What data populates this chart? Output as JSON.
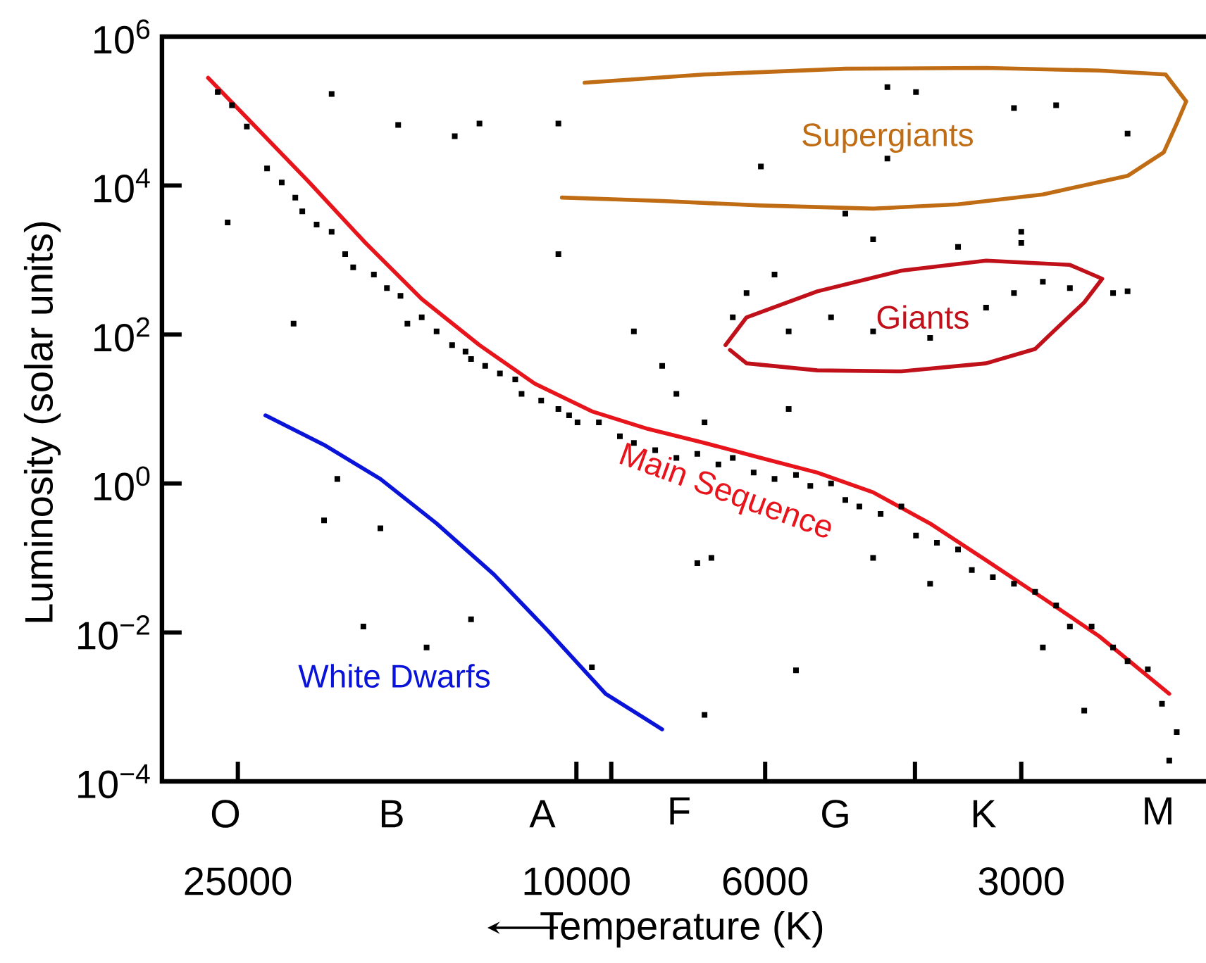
{
  "chart_data": {
    "type": "line",
    "xlabel": "Temperature (K)",
    "ylabel": "Luminosity (solar units)",
    "log": "xy",
    "xlim": [
      30700,
      1820
    ],
    "ylim": [
      0.0001,
      1000000
    ],
    "xticks": [
      25000,
      10000,
      {
        "value": 9100,
        "label": null
      },
      6000,
      {
        "value": 4000,
        "label": null
      },
      3000
    ],
    "annotations": [
      "O",
      "B",
      "A",
      "F",
      "G",
      "K",
      "M"
    ],
    "yticks": [
      {
        "value": 0.0001,
        "label": "10$^{−4}$"
      },
      {
        "value": 0.01,
        "label": "10$^{−2}$"
      },
      {
        "value": 1,
        "label": "10$^{0}$"
      },
      {
        "value": 100,
        "label": "10$^{2}$"
      },
      {
        "value": 10000,
        "label": "10$^{4}$"
      },
      {
        "value": 1000000,
        "label": "10$^{6}$"
      }
    ],
    "series": [
      {
        "type": "scatter",
        "color": "#000000",
        "marker": "square",
        "x": [
          26400,
          25400,
          24400,
          23100,
          22200,
          21400,
          21000,
          20200,
          19400,
          18700,
          18300,
          17300,
          16700,
          16100,
          15800,
          15200,
          14600,
          14000,
          13500,
          13300,
          12800,
          12300,
          11800,
          11600,
          11000,
          10500,
          10200,
          9970,
          9410,
          8890,
          8560,
          8080,
          7630,
          7210,
          6810,
          6550,
          6190,
          5850,
          5520,
          5310,
          5020,
          4830,
          4650,
          4390,
          4150,
          3990,
          3770,
          3560,
          3430,
          3240,
          3060,
          2890,
          2730,
          2630,
          2480,
          2340,
          2250,
          2130,
          2050,
          1970,
          2010,
          4480,
          3840,
          2830,
          2530,
          19400,
          16200,
          13900,
          13000,
          10500,
          25700,
          21500,
          10500,
          17000,
          19800,
          13300,
          15000,
          17800,
          9590,
          7070,
          5520,
          7210,
          6940,
          19100,
          4310,
          3990,
          3060,
          2730,
          2250,
          4310,
          6070,
          4830,
          4480,
          3560,
          3000,
          3000,
          5850,
          6310,
          6550,
          5630,
          5020,
          4480,
          3840,
          3300,
          3060,
          2830,
          2630,
          2340,
          2250,
          8560,
          7930,
          7630,
          7070,
          5630
        ],
        "values": [
          180000,
          120000,
          62000,
          17000,
          11000,
          6900,
          4500,
          3000,
          2400,
          1200,
          800,
          640,
          420,
          330,
          140,
          170,
          110,
          72,
          59,
          47,
          38,
          30,
          25,
          16,
          13,
          10,
          8.2,
          6.6,
          6.6,
          4.3,
          3.5,
          2.8,
          2.2,
          2.5,
          1.8,
          2.2,
          1.4,
          1.15,
          1.3,
          0.93,
          1.0,
          0.6,
          0.49,
          0.39,
          0.49,
          0.2,
          0.16,
          0.13,
          0.069,
          0.055,
          0.045,
          0.035,
          0.023,
          0.012,
          0.012,
          0.0063,
          0.0041,
          0.0032,
          0.0011,
          0.00046,
          0.00019,
          0.1,
          0.045,
          0.0063,
          0.00089,
          170000,
          65000,
          46000,
          68000,
          68000,
          3200,
          140,
          1200,
          0.25,
          0.32,
          0.015,
          0.0063,
          0.012,
          0.0034,
          0.00078,
          0.0031,
          0.085,
          0.1,
          1.15,
          210000,
          180000,
          110000,
          120000,
          50000,
          23000,
          18000,
          4200,
          1900,
          1500,
          2400,
          1700,
          640,
          360,
          170,
          110,
          170,
          110,
          90,
          230,
          360,
          510,
          420,
          360,
          380,
          110,
          38,
          16,
          6.6,
          10
        ]
      },
      {
        "type": "line",
        "name": "Main Sequence",
        "color": "#e8141c",
        "x": [
          27100,
          24000,
          20600,
          17700,
          15200,
          13000,
          11200,
          9590,
          8240,
          7070,
          6070,
          5210,
          4480,
          3840,
          3300,
          2830,
          2430,
          2010
        ],
        "values": [
          280000,
          67000,
          11000,
          1700,
          300,
          72,
          22,
          9.3,
          5.4,
          3.5,
          2.2,
          1.4,
          0.76,
          0.29,
          0.093,
          0.029,
          0.0089,
          0.0015
        ]
      },
      {
        "type": "line",
        "name": "White Dwarfs",
        "color": "#0a14d8",
        "x": [
          23200,
          19800,
          17000,
          14600,
          12500,
          10800,
          9240,
          7930
        ],
        "values": [
          8.2,
          3.3,
          1.15,
          0.29,
          0.06,
          0.0105,
          0.0015,
          0.0005
        ]
      },
      {
        "type": "line",
        "name": "Giants",
        "color": "#c0101a",
        "x": [
          6680,
          6310,
          5210,
          4150,
          3300,
          2630,
          2410,
          2530,
          2750,
          2890,
          3300,
          4150,
          5210,
          6310,
          6600
        ],
        "values": [
          72,
          170,
          380,
          720,
          980,
          860,
          560,
          270,
          110,
          64,
          41,
          32,
          33,
          41,
          62
        ]
      },
      {
        "type": "line",
        "name": "Supergiants",
        "color": "#c06c14",
        "x": [
          9780,
          7070,
          4830,
          3300,
          2430,
          2030,
          1920,
          1970,
          2040,
          2250,
          2830,
          3560,
          4480,
          6070,
          7930,
          10400
        ],
        "values": [
          240000,
          310000,
          370000,
          380000,
          350000,
          310000,
          135000,
          68000,
          28000,
          13500,
          7600,
          5600,
          4900,
          5400,
          6200,
          6900
        ]
      }
    ]
  }
}
